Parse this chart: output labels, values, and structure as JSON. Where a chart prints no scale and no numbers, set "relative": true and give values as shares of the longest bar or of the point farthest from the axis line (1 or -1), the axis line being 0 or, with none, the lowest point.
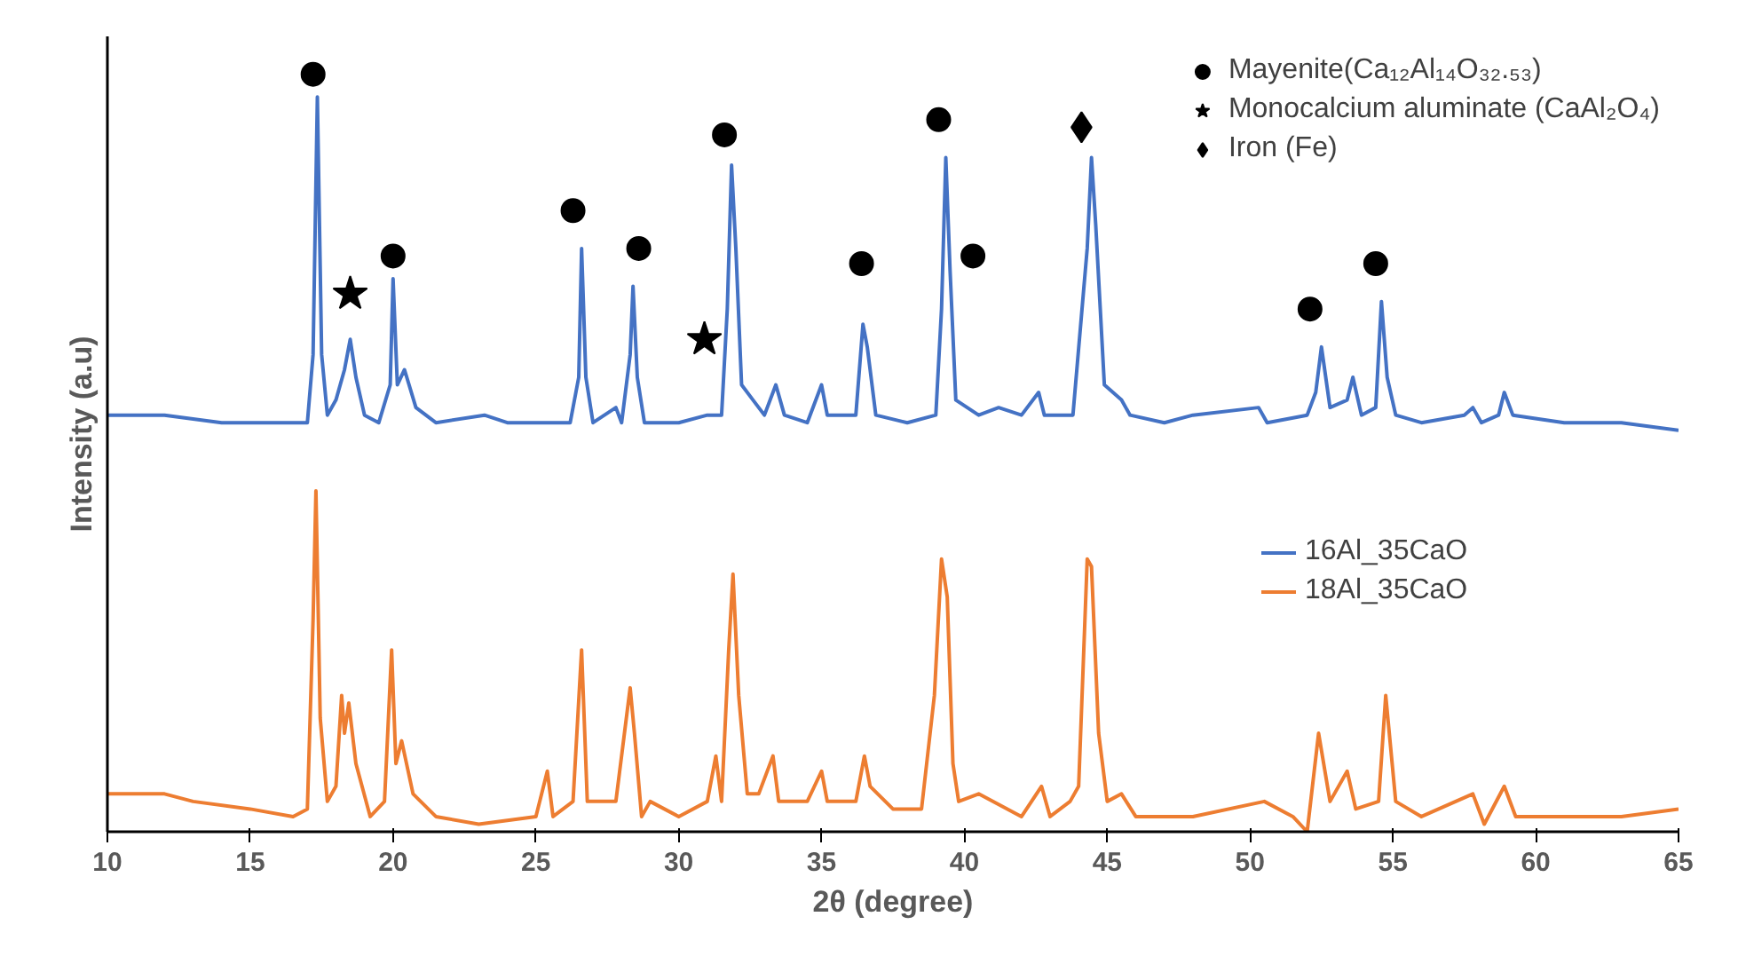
{
  "chart_data": {
    "type": "line",
    "xlabel": "2θ (degree)",
    "ylabel": "Intensity (a.u)",
    "relative": true,
    "xlim": [
      10,
      65
    ],
    "xticks": [
      10,
      15,
      20,
      25,
      30,
      35,
      40,
      45,
      50,
      55,
      60,
      65
    ],
    "tick_labels": "x",
    "grid": false,
    "legend": "right",
    "line_style": "solid",
    "series": [
      {
        "name": "16Al_35CaO",
        "color": "#4472c4",
        "x": [
          10,
          12,
          14,
          16,
          17.0,
          17.2,
          17.35,
          17.5,
          17.7,
          18.0,
          18.3,
          18.5,
          18.7,
          19.0,
          19.5,
          19.9,
          20.0,
          20.15,
          20.4,
          20.8,
          21.5,
          23.2,
          24,
          26.2,
          26.5,
          26.6,
          26.75,
          27,
          27.8,
          28.0,
          28.3,
          28.4,
          28.55,
          28.8,
          30,
          31,
          31.5,
          31.7,
          31.85,
          32.0,
          32.2,
          32.6,
          33.0,
          33.4,
          33.7,
          34.5,
          35.0,
          35.2,
          36.2,
          36.45,
          36.6,
          36.9,
          38,
          39.0,
          39.2,
          39.35,
          39.5,
          39.7,
          40.5,
          41.2,
          42,
          42.6,
          42.8,
          43.8,
          44.3,
          44.45,
          44.6,
          44.9,
          45.5,
          45.8,
          47,
          48,
          50.3,
          50.6,
          52.0,
          52.3,
          52.5,
          52.8,
          53.4,
          53.6,
          53.9,
          54.4,
          54.6,
          54.8,
          55.1,
          56,
          57.5,
          57.8,
          58.1,
          58.7,
          58.9,
          59.2,
          61,
          63,
          65
        ],
        "values": [
          0.55,
          0.55,
          0.54,
          0.54,
          0.54,
          0.63,
          0.97,
          0.63,
          0.55,
          0.57,
          0.61,
          0.65,
          0.6,
          0.55,
          0.54,
          0.59,
          0.73,
          0.59,
          0.61,
          0.56,
          0.54,
          0.55,
          0.54,
          0.54,
          0.6,
          0.77,
          0.6,
          0.54,
          0.56,
          0.54,
          0.63,
          0.72,
          0.6,
          0.54,
          0.54,
          0.55,
          0.55,
          0.69,
          0.88,
          0.77,
          0.59,
          0.57,
          0.55,
          0.59,
          0.55,
          0.54,
          0.59,
          0.55,
          0.55,
          0.67,
          0.64,
          0.55,
          0.54,
          0.55,
          0.69,
          0.89,
          0.74,
          0.57,
          0.55,
          0.56,
          0.55,
          0.58,
          0.55,
          0.55,
          0.77,
          0.89,
          0.8,
          0.59,
          0.57,
          0.55,
          0.54,
          0.55,
          0.56,
          0.54,
          0.55,
          0.58,
          0.64,
          0.56,
          0.57,
          0.6,
          0.55,
          0.56,
          0.7,
          0.6,
          0.55,
          0.54,
          0.55,
          0.56,
          0.54,
          0.55,
          0.58,
          0.55,
          0.54,
          0.54,
          0.53
        ]
      },
      {
        "name": "18Al_35CaO",
        "color": "#ed7d31",
        "x": [
          10,
          11,
          12,
          13,
          15,
          16.5,
          17.0,
          17.2,
          17.3,
          17.45,
          17.7,
          18.0,
          18.2,
          18.3,
          18.45,
          18.7,
          19.2,
          19.7,
          19.95,
          20.1,
          20.3,
          20.7,
          21.5,
          23,
          25,
          25.4,
          25.6,
          26.3,
          26.6,
          26.8,
          27.8,
          28.3,
          28.45,
          28.7,
          29,
          30,
          31,
          31.3,
          31.5,
          31.75,
          31.9,
          32.1,
          32.4,
          32.8,
          33.3,
          33.5,
          34.5,
          35.0,
          35.2,
          36.2,
          36.5,
          36.7,
          37.5,
          38.5,
          38.95,
          39.2,
          39.4,
          39.6,
          39.8,
          40.5,
          42,
          42.7,
          43.0,
          43.7,
          44.0,
          44.3,
          44.45,
          44.7,
          45.0,
          45.5,
          46,
          48,
          50.5,
          51.5,
          52.0,
          52.4,
          52.8,
          53.4,
          53.7,
          54.5,
          54.75,
          55.1,
          56,
          57.8,
          58.2,
          58.9,
          59.3,
          61,
          63,
          65
        ],
        "values": [
          0.05,
          0.05,
          0.05,
          0.04,
          0.03,
          0.02,
          0.03,
          0.28,
          0.45,
          0.15,
          0.04,
          0.06,
          0.18,
          0.13,
          0.17,
          0.09,
          0.02,
          0.04,
          0.24,
          0.09,
          0.12,
          0.05,
          0.02,
          0.01,
          0.02,
          0.08,
          0.02,
          0.04,
          0.24,
          0.04,
          0.04,
          0.19,
          0.13,
          0.02,
          0.04,
          0.02,
          0.04,
          0.1,
          0.04,
          0.24,
          0.34,
          0.18,
          0.05,
          0.05,
          0.1,
          0.04,
          0.04,
          0.08,
          0.04,
          0.04,
          0.1,
          0.06,
          0.03,
          0.03,
          0.18,
          0.36,
          0.31,
          0.09,
          0.04,
          0.05,
          0.02,
          0.06,
          0.02,
          0.04,
          0.06,
          0.36,
          0.35,
          0.13,
          0.04,
          0.05,
          0.02,
          0.02,
          0.04,
          0.02,
          0,
          0.13,
          0.04,
          0.08,
          0.03,
          0.04,
          0.18,
          0.04,
          0.02,
          0.05,
          0.01,
          0.06,
          0.02,
          0.02,
          0.02,
          0.03
        ]
      },
      {
        "name": "Mayenite(Ca₁₂Al₁₄O₃₂.₅₃)",
        "type": "scatter",
        "marker": "circle",
        "color": "#000000",
        "x": [
          17.2,
          20.0,
          26.3,
          28.6,
          31.6,
          36.4,
          39.1,
          40.3,
          52.1,
          54.4
        ],
        "values": [
          1.0,
          0.76,
          0.82,
          0.77,
          0.92,
          0.75,
          0.94,
          0.76,
          0.69,
          0.75
        ]
      },
      {
        "name": "Monocalcium aluminate (CaAl₂O₄)",
        "type": "scatter",
        "marker": "star",
        "color": "#000000",
        "x": [
          18.5,
          30.9
        ],
        "values": [
          0.71,
          0.65
        ]
      },
      {
        "name": "Iron (Fe)",
        "type": "scatter",
        "marker": "diamond",
        "color": "#000000",
        "x": [
          44.1
        ],
        "values": [
          0.93
        ]
      }
    ]
  }
}
